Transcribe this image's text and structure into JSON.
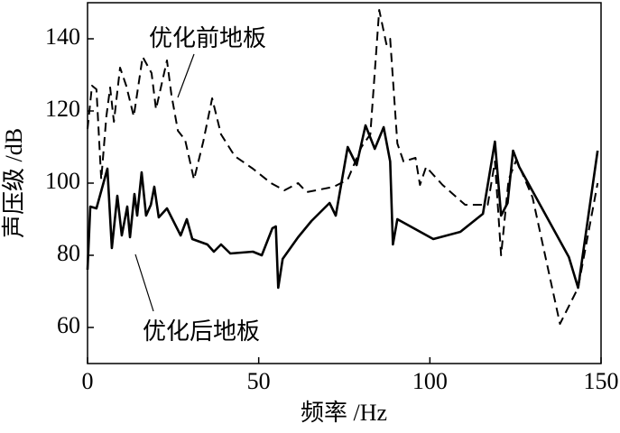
{
  "chart_data": {
    "type": "line",
    "x_label": "频率 /Hz",
    "y_label": "声压级 /dB",
    "xlim": [
      0,
      150
    ],
    "ylim": [
      50,
      150
    ],
    "xticks": [
      0,
      50,
      100,
      150
    ],
    "yticks": [
      60,
      80,
      100,
      120,
      140
    ],
    "series": [
      {
        "name": "优化前地板",
        "color": "#000000",
        "dash": true,
        "x": [
          0,
          1.3,
          2.6,
          4,
          5.5,
          6.6,
          7.7,
          9.5,
          11.3,
          13.5,
          16.1,
          18.7,
          20,
          23.2,
          24.5,
          26.4,
          28.5,
          31.1,
          33.8,
          36.4,
          39,
          43,
          48.3,
          53.6,
          57.5,
          61.5,
          64,
          72,
          76,
          80,
          82.6,
          85.2,
          87.3,
          88.4,
          90.5,
          92.3,
          95.8,
          97.1,
          98.9,
          103.7,
          110.3,
          116.9,
          119,
          120.8,
          123,
          125.3,
          130,
          138,
          143.3,
          149
        ],
        "values": [
          115,
          127,
          126,
          101,
          118.5,
          126.5,
          117,
          132,
          127,
          118.5,
          135,
          130.5,
          120.5,
          134,
          124.5,
          114.5,
          112,
          101,
          111.5,
          123.5,
          113.5,
          107.5,
          104,
          100,
          98,
          100,
          97.5,
          99,
          101,
          110,
          113.5,
          148,
          138.5,
          140,
          111,
          106,
          107,
          99.5,
          104.5,
          99.5,
          94,
          94,
          106,
          80,
          101,
          106.5,
          96,
          61,
          71,
          100
        ]
      },
      {
        "name": "优化后地板",
        "color": "#000000",
        "dash": false,
        "x": [
          0,
          0.8,
          2.6,
          5.8,
          7.1,
          8.7,
          10,
          11.6,
          12.4,
          13.7,
          14.5,
          15.8,
          17.1,
          18.5,
          19.5,
          20.8,
          23.2,
          27.2,
          29,
          30.6,
          35,
          36.9,
          39,
          41.7,
          48.3,
          50.9,
          54,
          55,
          55.7,
          57,
          61.5,
          65.4,
          70.7,
          72.5,
          76,
          78.6,
          81.2,
          83.9,
          86.5,
          88.4,
          89.2,
          90.5,
          101,
          108.9,
          115.5,
          119,
          120.8,
          122.7,
          124.3,
          126.1,
          140.6,
          143.3,
          149
        ],
        "values": [
          76,
          93.5,
          93,
          104,
          82,
          96.5,
          85.5,
          93.5,
          85,
          97,
          91,
          103,
          91,
          94,
          99,
          90.5,
          93,
          85.5,
          90,
          84.5,
          83,
          81,
          83,
          80.5,
          81,
          80,
          87.5,
          88,
          71,
          79,
          85,
          89.5,
          94.5,
          91,
          110,
          105,
          116,
          109.5,
          115.5,
          106,
          83,
          90,
          84.5,
          86.5,
          91.5,
          111.5,
          91,
          94.5,
          109,
          104.5,
          79.5,
          71,
          109
        ]
      }
    ]
  }
}
